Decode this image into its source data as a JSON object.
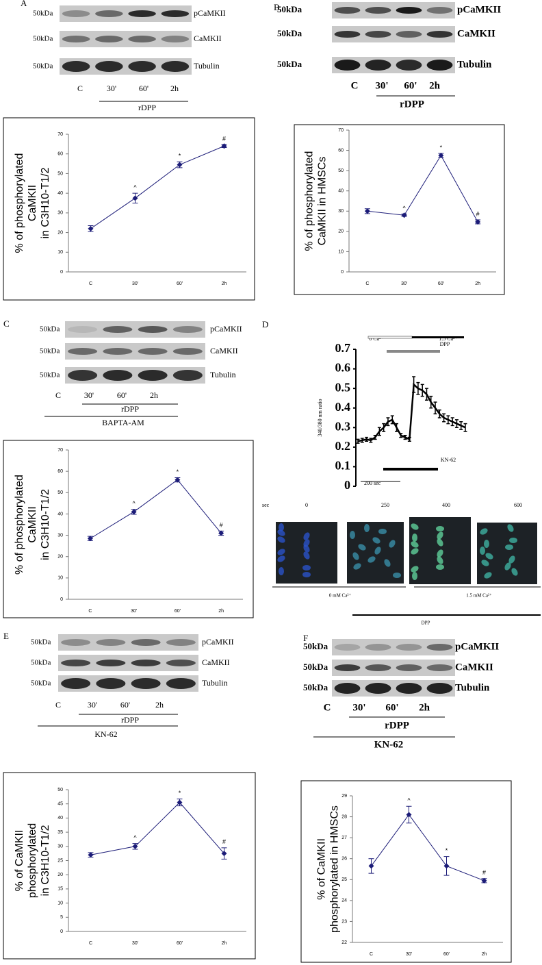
{
  "chart_data": [
    {
      "type": "errorline",
      "panel_ref": "A",
      "ylabel": [
        "% of phosphorylated",
        "CaMKII",
        "in C3H10-T1/2"
      ],
      "categories": [
        "C",
        "30'",
        "60'",
        "2h"
      ],
      "values": [
        22,
        37.5,
        54.5,
        64
      ],
      "errors": [
        1.5,
        2.5,
        1.5,
        0.8
      ],
      "markers": [
        null,
        "^",
        "*",
        "#"
      ],
      "ylim": [
        0,
        70
      ],
      "yticks": [
        0,
        10,
        20,
        30,
        40,
        50,
        60,
        70
      ],
      "color": "#1c1c78"
    },
    {
      "type": "errorline",
      "panel_ref": "B",
      "ylabel": [
        "% of phosphorylated",
        "CaMKII in HMSCs"
      ],
      "categories": [
        "C",
        "30'",
        "60'",
        "2h"
      ],
      "values": [
        30,
        28,
        57.5,
        24.7
      ],
      "errors": [
        1.2,
        0.6,
        1,
        1
      ],
      "markers": [
        null,
        "^",
        "*",
        "#"
      ],
      "ylim": [
        0,
        70
      ],
      "yticks": [
        0,
        10,
        20,
        30,
        40,
        50,
        60,
        70
      ],
      "color": "#1c1c78"
    },
    {
      "type": "errorline",
      "panel_ref": "C",
      "ylabel": [
        "% of phosphorylated",
        "CaMKII",
        "in C3H10-T1/2"
      ],
      "categories": [
        "C",
        "30'",
        "60'",
        "2h"
      ],
      "values": [
        28.5,
        41,
        56,
        31
      ],
      "errors": [
        1,
        1.2,
        1,
        1
      ],
      "markers": [
        null,
        "^",
        "*",
        "#"
      ],
      "ylim": [
        0,
        70
      ],
      "yticks": [
        0,
        10,
        20,
        30,
        40,
        50,
        60,
        70
      ],
      "color": "#1c1c78"
    },
    {
      "type": "errorline",
      "panel_ref": "E",
      "ylabel": [
        "% of CaMKII",
        "phosphorylated",
        "in C3H10-T1/2"
      ],
      "categories": [
        "C",
        "30'",
        "60'",
        "2h"
      ],
      "values": [
        27,
        30,
        45.5,
        27.5
      ],
      "errors": [
        0.8,
        1,
        1.2,
        2
      ],
      "markers": [
        null,
        "^",
        "*",
        "#"
      ],
      "ylim": [
        0,
        50
      ],
      "yticks": [
        0,
        5,
        10,
        15,
        20,
        25,
        30,
        35,
        40,
        45,
        50
      ],
      "color": "#1c1c78"
    },
    {
      "type": "errorline",
      "panel_ref": "F",
      "ylabel": [
        "% of CaMKII",
        "phosphorylated in HMSCs"
      ],
      "categories": [
        "C",
        "30'",
        "60'",
        "2h"
      ],
      "values": [
        25.65,
        28.1,
        25.65,
        24.95
      ],
      "errors": [
        0.35,
        0.4,
        0.45,
        0.1
      ],
      "markers": [
        null,
        "^",
        "*",
        "#"
      ],
      "ylim": [
        22,
        29
      ],
      "yticks": [
        22,
        23,
        24,
        25,
        26,
        27,
        28,
        29
      ],
      "color": "#1c1c78"
    },
    {
      "type": "trace",
      "ylabel": [
        "340/380 nm ratio"
      ],
      "values": [
        0.23,
        0.235,
        0.24,
        0.235,
        0.25,
        0.28,
        0.3,
        0.33,
        0.34,
        0.3,
        0.26,
        0.25,
        0.24,
        0.52,
        0.5,
        0.49,
        0.47,
        0.43,
        0.4,
        0.37,
        0.35,
        0.34,
        0.33,
        0.32,
        0.31,
        0.3
      ],
      "errors": [
        0.01,
        0.01,
        0.01,
        0.01,
        0.01,
        0.02,
        0.02,
        0.02,
        0.02,
        0.02,
        0.01,
        0.01,
        0.01,
        0.04,
        0.03,
        0.03,
        0.03,
        0.03,
        0.03,
        0.02,
        0.02,
        0.02,
        0.02,
        0.02,
        0.02,
        0.02
      ],
      "ylim": [
        0,
        0.7
      ],
      "yticks": [
        0,
        0.1,
        0.2,
        0.3,
        0.4,
        0.5,
        0.6,
        0.7
      ],
      "color": "#000000",
      "annotations": {
        "zero_ca": "0 Ca²⁺",
        "high_ca": "1.5 Ca²⁺",
        "dpp": "DPP",
        "kn": "KN-62",
        "scale": "200 sec"
      }
    }
  ],
  "blots": [
    {
      "panel": "A",
      "rows": [
        {
          "kda": "50kDa",
          "label": "pCaMKII"
        },
        {
          "kda": "50kDa",
          "label": "CaMKII"
        },
        {
          "kda": "50kDa",
          "label": "Tubulin"
        }
      ],
      "lanes": [
        "C",
        "30'",
        "60'",
        "2h"
      ],
      "treatment": "rDPP"
    },
    {
      "panel": "B",
      "rows": [
        {
          "kda": "50kDa",
          "label": "pCaMKII"
        },
        {
          "kda": "50kDa",
          "label": "CaMKII"
        },
        {
          "kda": "50kDa",
          "label": "Tubulin"
        }
      ],
      "lanes": [
        "C",
        "30'",
        "60'",
        "2h"
      ],
      "treatment": "rDPP"
    },
    {
      "panel": "C",
      "rows": [
        {
          "kda": "50kDa",
          "label": "pCaMKII"
        },
        {
          "kda": "50kDa",
          "label": "CaMKII"
        },
        {
          "kda": "50kDa",
          "label": "Tubulin"
        }
      ],
      "lanes": [
        "C",
        "30'",
        "60'",
        "2h"
      ],
      "treatment": "rDPP",
      "inhibitor": "BAPTA-AM"
    },
    {
      "panel": "E",
      "rows": [
        {
          "kda": "50kDa",
          "label": "pCaMKII"
        },
        {
          "kda": "50kDa",
          "label": "CaMKII"
        },
        {
          "kda": "50kDa",
          "label": "Tubulin"
        }
      ],
      "lanes": [
        "C",
        "30'",
        "60'",
        "2h"
      ],
      "treatment": "rDPP",
      "inhibitor": "KN-62"
    },
    {
      "panel": "F",
      "rows": [
        {
          "kda": "50kDa",
          "label": "pCaMKII"
        },
        {
          "kda": "50kDa",
          "label": "CaMKII"
        },
        {
          "kda": "50kDa",
          "label": "Tubulin"
        }
      ],
      "lanes": [
        "C",
        "30'",
        "60'",
        "2h"
      ],
      "treatment": "rDPP",
      "inhibitor": "KN-62"
    }
  ],
  "panel_d": {
    "panel": "D",
    "time_label": "sec",
    "times": [
      "0",
      "250",
      "400",
      "600"
    ],
    "conditions": [
      "0 mM Ca²⁺",
      "1.5 mM Ca²⁺"
    ],
    "treatment": "DPP"
  }
}
